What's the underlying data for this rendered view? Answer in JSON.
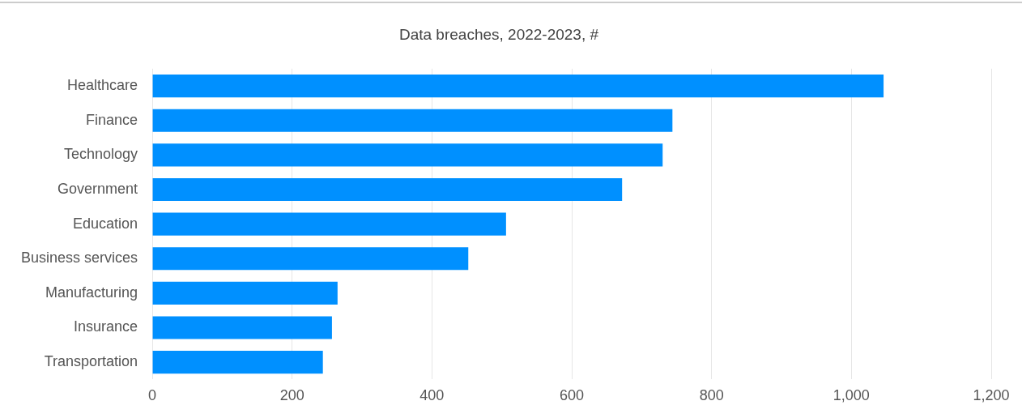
{
  "chart_data": {
    "type": "bar",
    "orientation": "horizontal",
    "title": "Data breaches, 2022-2023, #",
    "categories": [
      "Healthcare",
      "Finance",
      "Technology",
      "Government",
      "Education",
      "Business services",
      "Manufacturing",
      "Insurance",
      "Transportation"
    ],
    "values": [
      1046,
      744,
      730,
      672,
      506,
      452,
      265,
      257,
      244
    ],
    "color": "#0090ff",
    "xlim": [
      0,
      1200
    ],
    "xticks": [
      0,
      {
        "value": 200,
        "label": "200"
      },
      {
        "value": 400,
        "label": "400"
      },
      {
        "value": 600,
        "label": "600"
      },
      {
        "value": 800,
        "label": "800"
      },
      {
        "value": 1000,
        "label": "1,000"
      },
      {
        "value": 1200,
        "label": "1,200"
      }
    ],
    "grid": "x",
    "legend": false
  }
}
